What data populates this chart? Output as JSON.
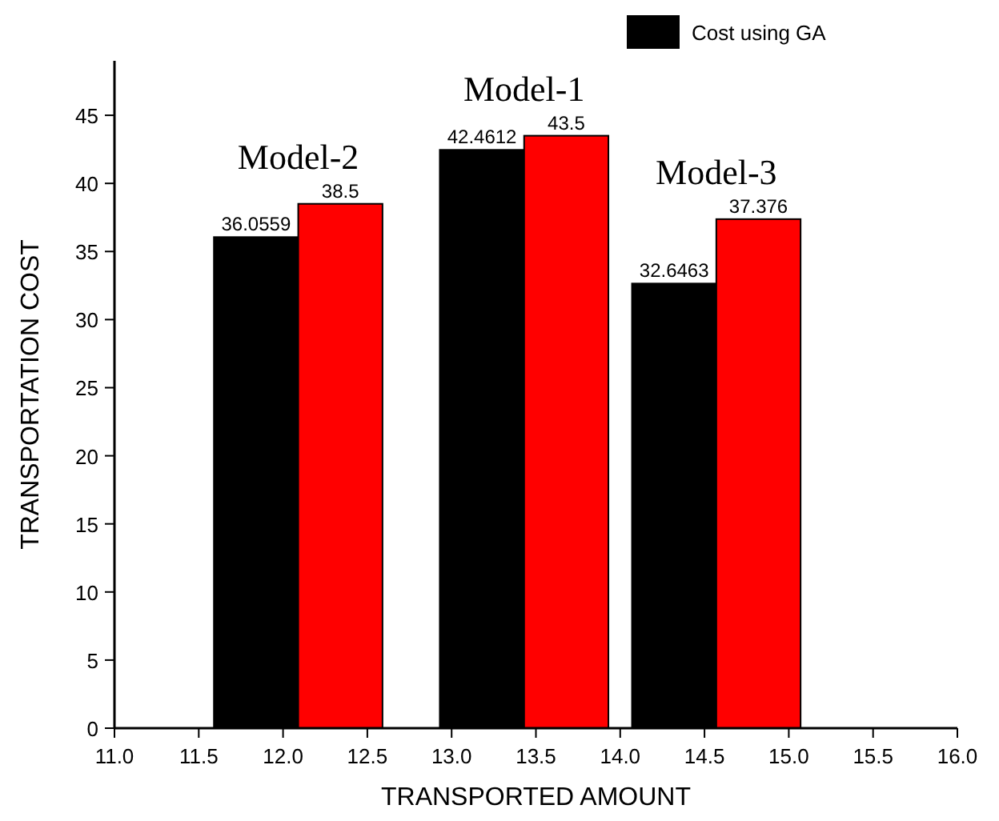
{
  "chart_data": {
    "type": "bar",
    "xlabel": "TRANSPORTED AMOUNT",
    "ylabel": "TRANSPORTATION COST",
    "series": [
      {
        "name": "Cost using GA",
        "color": "#000000",
        "x": [
          11.84,
          13.18,
          14.32
        ],
        "values": [
          36.0559,
          42.4612,
          32.6463
        ]
      },
      {
        "color": "#ff0000",
        "x": [
          12.34,
          13.68,
          14.82
        ],
        "values": [
          38.5,
          43.5,
          37.376
        ]
      }
    ],
    "xlim": [
      11,
      16
    ],
    "xticks": [
      {
        "value": 11,
        "label": "11.0"
      },
      {
        "value": 11.5,
        "label": "11.5"
      },
      {
        "value": 12,
        "label": "12.0"
      },
      {
        "value": 12.5,
        "label": "12.5"
      },
      {
        "value": 13,
        "label": "13.0"
      },
      {
        "value": 13.5,
        "label": "13.5"
      },
      {
        "value": 14,
        "label": "14.0"
      },
      {
        "value": 14.5,
        "label": "14.5"
      },
      {
        "value": 15,
        "label": "15.0"
      },
      {
        "value": 15.5,
        "label": "15.5"
      },
      {
        "value": 16,
        "label": "16.0"
      }
    ],
    "ylim": [
      0,
      49
    ],
    "yticks": [
      0,
      5,
      10,
      15,
      20,
      25,
      30,
      35,
      40,
      45
    ],
    "annotations": [
      "Model-2",
      "Model-1",
      "Model-3"
    ],
    "data_labels": true,
    "legend": "top right",
    "grid": false
  }
}
